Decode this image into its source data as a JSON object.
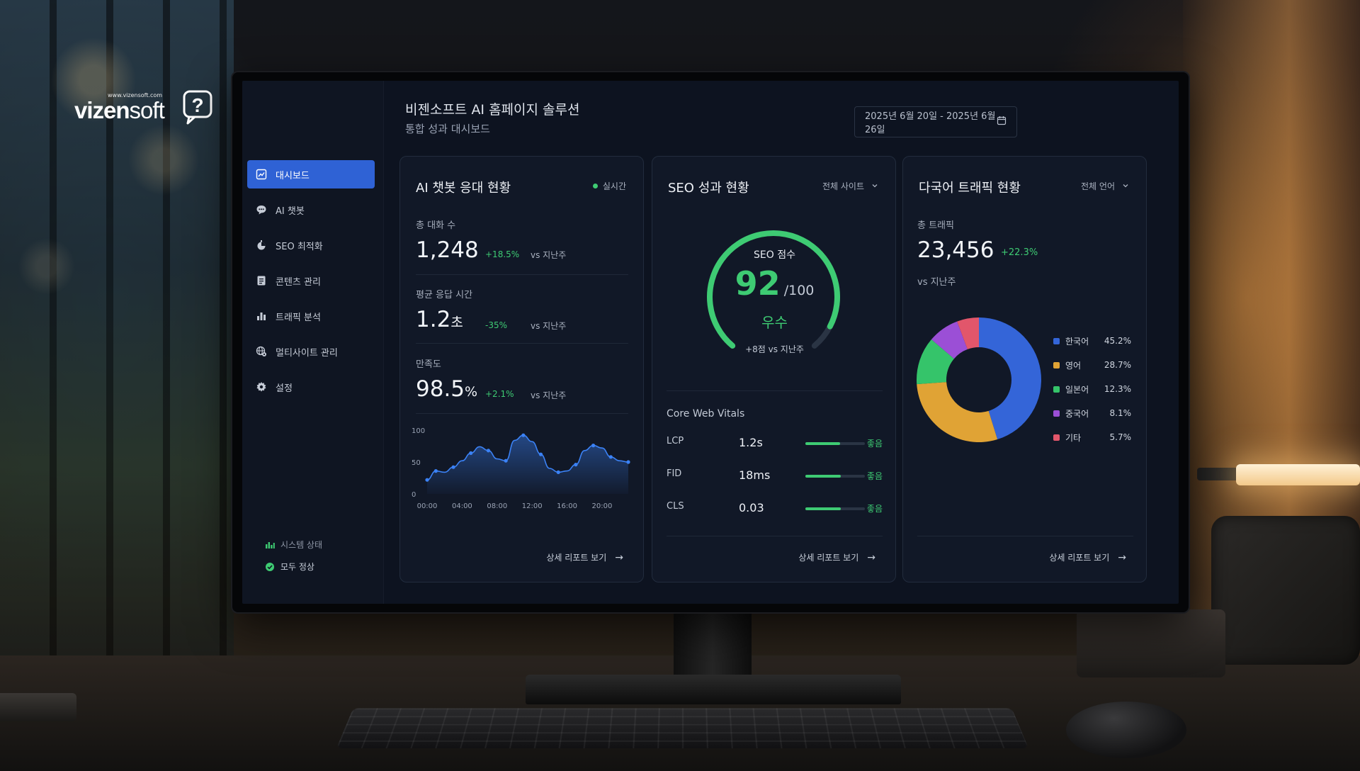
{
  "brand": {
    "url": "www.vizensoft.com",
    "name_part1": "vizen",
    "name_part2": "soft"
  },
  "header": {
    "title": "비젠소프트 AI 홈페이지 솔루션",
    "subtitle": "통합 성과 대시보드",
    "date_range": "2025년 6월 20일 - 2025년 6월 26일"
  },
  "sidebar": {
    "items": [
      {
        "label": "대시보드",
        "icon": "dashboard-icon",
        "active": true
      },
      {
        "label": "AI 챗봇",
        "icon": "chat-bubble-icon"
      },
      {
        "label": "SEO 최적화",
        "icon": "seo-icon"
      },
      {
        "label": "콘텐츠 관리",
        "icon": "document-icon"
      },
      {
        "label": "트래픽 분석",
        "icon": "bar-chart-icon"
      },
      {
        "label": "멀티사이트 관리",
        "icon": "globe-icon"
      },
      {
        "label": "설정",
        "icon": "gear-icon"
      }
    ],
    "status_label": "시스템 상태",
    "status_value": "모두 정상"
  },
  "chatbot": {
    "title": "AI 챗봇 응대 현황",
    "live_label": "실시간",
    "metrics": [
      {
        "label": "총 대화 수",
        "value": "1,248",
        "unit": "",
        "change": "+18.5%",
        "vs": "vs 지난주"
      },
      {
        "label": "평균 응답 시간",
        "value": "1.2",
        "unit": "초",
        "change": "-35%",
        "vs": "vs 지난주"
      },
      {
        "label": "만족도",
        "value": "98.5",
        "unit": "%",
        "change": "+2.1%",
        "vs": "vs 지난주"
      }
    ],
    "footer": "상세 리포트 보기"
  },
  "chart_data": {
    "type": "area",
    "x_tick_labels": [
      "00:00",
      "04:00",
      "08:00",
      "12:00",
      "16:00",
      "20:00"
    ],
    "y_tick_labels": [
      "100",
      "50",
      "0"
    ],
    "ylim": [
      0,
      100
    ],
    "xlim": [
      0,
      23
    ],
    "x": [
      0,
      1,
      2,
      3,
      4,
      5,
      6,
      7,
      8,
      9,
      10,
      11,
      12,
      13,
      14,
      15,
      16,
      17,
      18,
      19,
      20,
      21,
      22,
      23
    ],
    "values": [
      22,
      36,
      34,
      42,
      52,
      64,
      74,
      68,
      55,
      52,
      84,
      92,
      82,
      62,
      40,
      34,
      36,
      46,
      68,
      76,
      72,
      58,
      52,
      50
    ],
    "color": "#3b82f6"
  },
  "seo": {
    "title": "SEO 성과 현황",
    "filter": "전체 사이트",
    "score_label": "SEO 점수",
    "score": "92",
    "score_value": 92,
    "score_max": "/100",
    "grade": "우수",
    "delta": "+8점 vs 지난주",
    "vitals_title": "Core Web Vitals",
    "vitals": [
      {
        "name": "LCP",
        "value": "1.2s",
        "status": "좋음",
        "level": 0.58
      },
      {
        "name": "FID",
        "value": "18ms",
        "status": "좋음",
        "level": 0.6
      },
      {
        "name": "CLS",
        "value": "0.03",
        "status": "좋음",
        "level": 0.6
      }
    ],
    "footer": "상세 리포트 보기"
  },
  "traffic": {
    "title": "다국어 트래픽 현황",
    "filter": "전체 언어",
    "total_label": "총 트래픽",
    "total": "23,456",
    "change": "+22.3%",
    "vs": "vs 지난주",
    "languages": [
      {
        "name": "한국어",
        "pct": "45.2%",
        "value": 45.2,
        "color": "#3465d8"
      },
      {
        "name": "영어",
        "pct": "28.7%",
        "value": 28.7,
        "color": "#e0a335"
      },
      {
        "name": "일본어",
        "pct": "12.3%",
        "value": 12.3,
        "color": "#35c46a"
      },
      {
        "name": "중국어",
        "pct": "8.1%",
        "value": 8.1,
        "color": "#9b4fd6"
      },
      {
        "name": "기타",
        "pct": "5.7%",
        "value": 5.7,
        "color": "#e2566b"
      }
    ],
    "footer": "상세 리포트 보기"
  },
  "colors": {
    "accent": "#2f62d5",
    "positive": "#3ecb73",
    "background": "#0d1320",
    "card": "#111827"
  }
}
